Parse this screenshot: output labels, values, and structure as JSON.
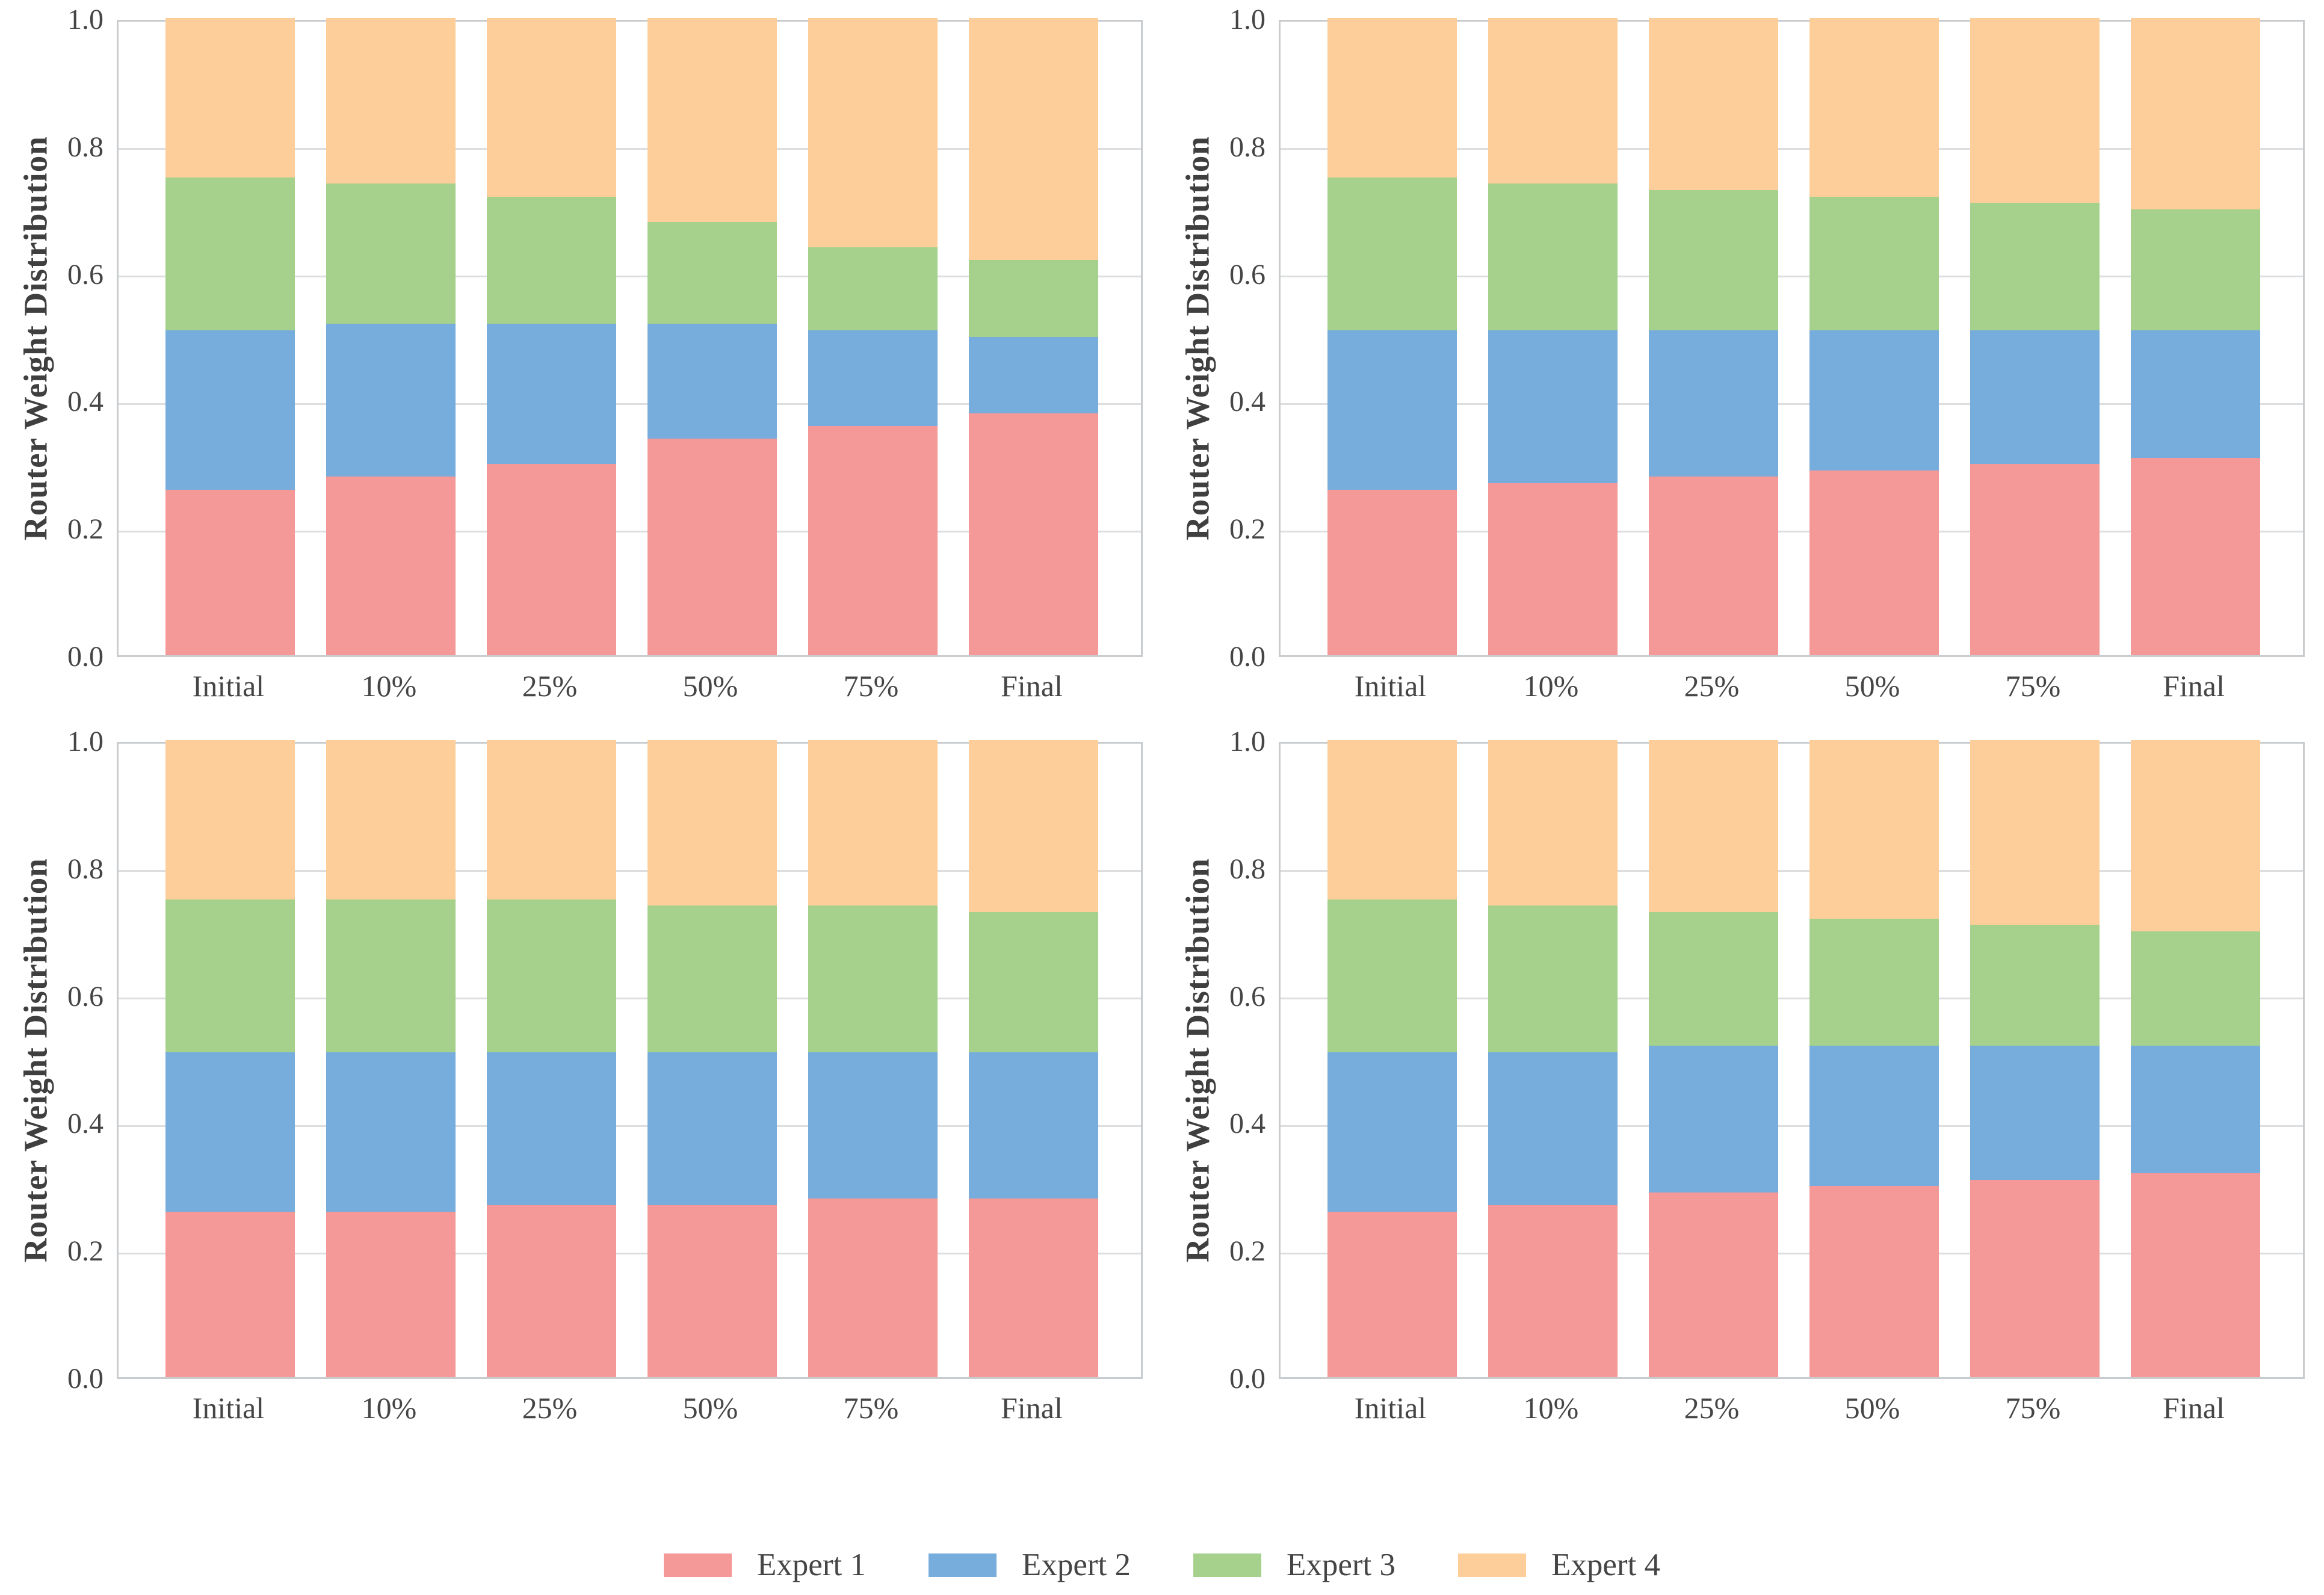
{
  "figure": {
    "background": "#ffffff",
    "layout": "2x2-grid-of-stacked-bar-charts-with-shared-bottom-legend"
  },
  "colors": {
    "axis_label_text": "#3f3f3f",
    "tick_text": "#454545",
    "spine": "#c9cccf",
    "gridline": "#dcdee0",
    "expert1": "#f49898",
    "expert2": "#76addd",
    "expert3": "#a5d18c",
    "expert4": "#fdce99"
  },
  "legend": {
    "position": "bottom-center",
    "items": [
      {
        "label": "Expert 1",
        "color": "#f49898"
      },
      {
        "label": "Expert 2",
        "color": "#76addd"
      },
      {
        "label": "Expert 3",
        "color": "#a5d18c"
      },
      {
        "label": "Expert 4",
        "color": "#fdce99"
      }
    ]
  },
  "chart_data": [
    {
      "type": "bar",
      "stacked": true,
      "position": "top-left",
      "title": "",
      "xlabel": "",
      "ylabel": "Router Weight Distribution",
      "ylim": [
        0.0,
        1.0
      ],
      "grid": "horizontal",
      "categories": [
        "Initial",
        "10%",
        "25%",
        "50%",
        "75%",
        "Final"
      ],
      "ytick_labels": [
        "0.0",
        "0.2",
        "0.4",
        "0.6",
        "0.8",
        "1.0"
      ],
      "series": [
        {
          "name": "Expert 1",
          "color": "#f49898",
          "values": [
            0.26,
            0.28,
            0.3,
            0.34,
            0.36,
            0.38
          ]
        },
        {
          "name": "Expert 2",
          "color": "#76addd",
          "values": [
            0.25,
            0.24,
            0.22,
            0.18,
            0.15,
            0.12
          ]
        },
        {
          "name": "Expert 3",
          "color": "#a5d18c",
          "values": [
            0.24,
            0.22,
            0.2,
            0.16,
            0.13,
            0.12
          ]
        },
        {
          "name": "Expert 4",
          "color": "#fdce99",
          "values": [
            0.25,
            0.26,
            0.28,
            0.32,
            0.36,
            0.38
          ]
        }
      ]
    },
    {
      "type": "bar",
      "stacked": true,
      "position": "top-right",
      "title": "",
      "xlabel": "",
      "ylabel": "Router Weight Distribution",
      "ylim": [
        0.0,
        1.0
      ],
      "grid": "horizontal",
      "categories": [
        "Initial",
        "10%",
        "25%",
        "50%",
        "75%",
        "Final"
      ],
      "ytick_labels": [
        "0.0",
        "0.2",
        "0.4",
        "0.6",
        "0.8",
        "1.0"
      ],
      "series": [
        {
          "name": "Expert 1",
          "color": "#f49898",
          "values": [
            0.26,
            0.27,
            0.28,
            0.29,
            0.3,
            0.31
          ]
        },
        {
          "name": "Expert 2",
          "color": "#76addd",
          "values": [
            0.25,
            0.24,
            0.23,
            0.22,
            0.21,
            0.2
          ]
        },
        {
          "name": "Expert 3",
          "color": "#a5d18c",
          "values": [
            0.24,
            0.23,
            0.22,
            0.21,
            0.2,
            0.19
          ]
        },
        {
          "name": "Expert 4",
          "color": "#fdce99",
          "values": [
            0.25,
            0.26,
            0.27,
            0.28,
            0.29,
            0.3
          ]
        }
      ]
    },
    {
      "type": "bar",
      "stacked": true,
      "position": "bottom-left",
      "title": "",
      "xlabel": "",
      "ylabel": "Router Weight Distribution",
      "ylim": [
        0.0,
        1.0
      ],
      "grid": "horizontal",
      "categories": [
        "Initial",
        "10%",
        "25%",
        "50%",
        "75%",
        "Final"
      ],
      "ytick_labels": [
        "0.0",
        "0.2",
        "0.4",
        "0.6",
        "0.8",
        "1.0"
      ],
      "series": [
        {
          "name": "Expert 1",
          "color": "#f49898",
          "values": [
            0.26,
            0.26,
            0.27,
            0.27,
            0.28,
            0.28
          ]
        },
        {
          "name": "Expert 2",
          "color": "#76addd",
          "values": [
            0.25,
            0.25,
            0.24,
            0.24,
            0.23,
            0.23
          ]
        },
        {
          "name": "Expert 3",
          "color": "#a5d18c",
          "values": [
            0.24,
            0.24,
            0.24,
            0.23,
            0.23,
            0.22
          ]
        },
        {
          "name": "Expert 4",
          "color": "#fdce99",
          "values": [
            0.25,
            0.25,
            0.25,
            0.26,
            0.26,
            0.27
          ]
        }
      ]
    },
    {
      "type": "bar",
      "stacked": true,
      "position": "bottom-right",
      "title": "",
      "xlabel": "",
      "ylabel": "Router Weight Distribution",
      "ylim": [
        0.0,
        1.0
      ],
      "grid": "horizontal",
      "categories": [
        "Initial",
        "10%",
        "25%",
        "50%",
        "75%",
        "Final"
      ],
      "ytick_labels": [
        "0.0",
        "0.2",
        "0.4",
        "0.6",
        "0.8",
        "1.0"
      ],
      "series": [
        {
          "name": "Expert 1",
          "color": "#f49898",
          "values": [
            0.26,
            0.27,
            0.29,
            0.3,
            0.31,
            0.32
          ]
        },
        {
          "name": "Expert 2",
          "color": "#76addd",
          "values": [
            0.25,
            0.24,
            0.23,
            0.22,
            0.21,
            0.2
          ]
        },
        {
          "name": "Expert 3",
          "color": "#a5d18c",
          "values": [
            0.24,
            0.23,
            0.21,
            0.2,
            0.19,
            0.18
          ]
        },
        {
          "name": "Expert 4",
          "color": "#fdce99",
          "values": [
            0.25,
            0.26,
            0.27,
            0.28,
            0.29,
            0.3
          ]
        }
      ]
    }
  ]
}
